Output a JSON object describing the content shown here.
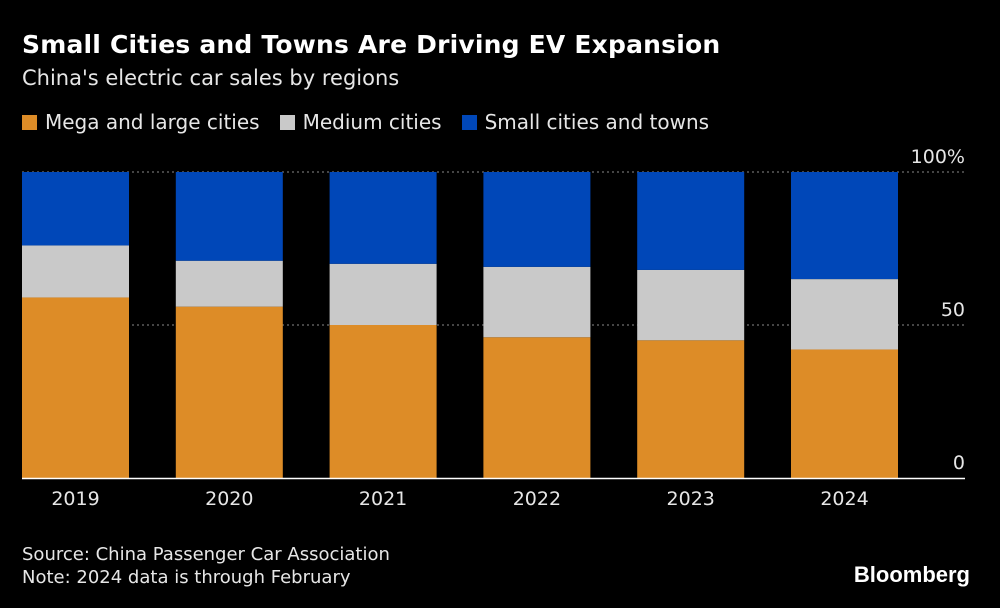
{
  "chart_data": {
    "type": "bar",
    "stacked": true,
    "title": "Small Cities and Towns Are Driving EV Expansion",
    "subtitle": "China's electric car sales by regions",
    "categories": [
      "2019",
      "2020",
      "2021",
      "2022",
      "2023",
      "2024"
    ],
    "series": [
      {
        "name": "Mega and large cities",
        "color": "#dd8c27",
        "values": [
          59,
          56,
          50,
          46,
          45,
          42
        ]
      },
      {
        "name": "Medium cities",
        "color": "#c9c9c9",
        "values": [
          17,
          15,
          20,
          23,
          23,
          23
        ]
      },
      {
        "name": "Small cities and towns",
        "color": "#0047b8",
        "values": [
          24,
          29,
          30,
          31,
          32,
          35
        ]
      }
    ],
    "ylim": [
      0,
      100
    ],
    "yticks": [
      0,
      50,
      100
    ],
    "ytick_labels": [
      "0",
      "50",
      "100%"
    ],
    "xlabel": "",
    "ylabel": "",
    "grid": true,
    "legend_position": "top-left"
  },
  "footer": {
    "source": "Source: China Passenger Car Association",
    "note": "Note: 2024 data is through February"
  },
  "brand": "Bloomberg"
}
